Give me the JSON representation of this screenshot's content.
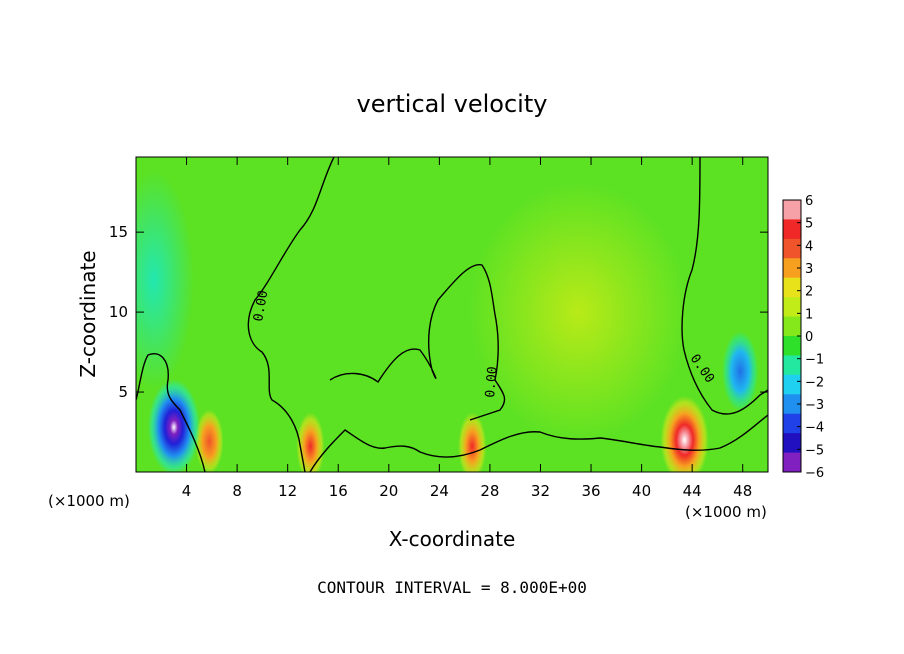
{
  "chart_data": {
    "type": "heatmap",
    "title": "vertical velocity",
    "xlabel": "X-coordinate",
    "ylabel": "Z-coordinate",
    "x_unit_left": "(×1000 m)",
    "x_unit_right": "(×1000 m)",
    "xlim": [
      0,
      50
    ],
    "ylim": [
      0,
      19.7
    ],
    "x_ticks": [
      4,
      8,
      12,
      16,
      20,
      24,
      28,
      32,
      36,
      40,
      44,
      48
    ],
    "y_ticks": [
      5,
      10,
      15
    ],
    "colorbar": {
      "ticks": [
        6,
        5,
        4,
        3,
        2,
        1,
        0,
        -1,
        -2,
        -3,
        -4,
        -5,
        -6
      ],
      "colors": [
        "#f6a0a8",
        "#f02828",
        "#f0542a",
        "#f7a020",
        "#e8e21a",
        "#c2ec18",
        "#84e81a",
        "#2ee02a",
        "#22e8a0",
        "#20d0f0",
        "#2090f0",
        "#2040e8",
        "#2010c0",
        "#8020c0"
      ]
    },
    "contour_label": "0.00",
    "contour_interval_text": "CONTOUR INTERVAL = 8.000E+00",
    "features": [
      {
        "x": 3.0,
        "z": 2.8,
        "value": -6
      },
      {
        "x": 5.8,
        "z": 1.9,
        "value": 3
      },
      {
        "x": 13.8,
        "z": 1.6,
        "value": 4
      },
      {
        "x": 26.6,
        "z": 1.6,
        "value": 4
      },
      {
        "x": 43.4,
        "z": 2.0,
        "value": 6
      },
      {
        "x": 47.8,
        "z": 6.3,
        "value": -3
      },
      {
        "x": 1.4,
        "z": 12.0,
        "value": -1.5
      },
      {
        "x": 35.0,
        "z": 10.0,
        "value": 1
      }
    ]
  }
}
